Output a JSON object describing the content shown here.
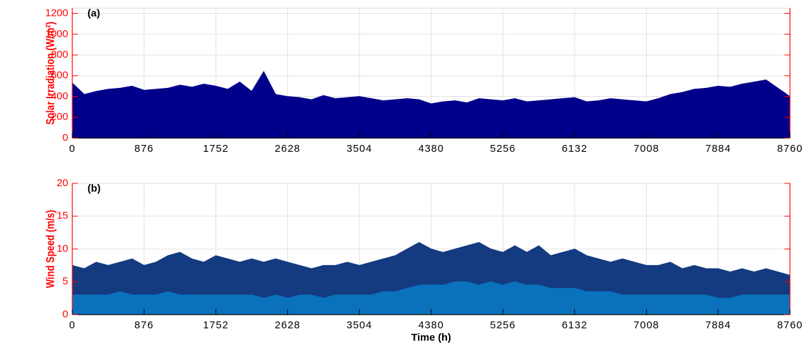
{
  "chart_data": [
    {
      "type": "area",
      "panel_label": "(a)",
      "ylabel": "Solar Irradiation (W/m²)",
      "x": [
        0,
        146,
        292,
        438,
        584,
        730,
        876,
        1022,
        1168,
        1314,
        1460,
        1606,
        1752,
        1898,
        2044,
        2190,
        2336,
        2482,
        2628,
        2774,
        2920,
        3066,
        3212,
        3358,
        3504,
        3650,
        3796,
        3942,
        4088,
        4234,
        4380,
        4526,
        4672,
        4818,
        4964,
        5110,
        5256,
        5402,
        5548,
        5694,
        5840,
        5986,
        6132,
        6278,
        6424,
        6570,
        6716,
        6862,
        7008,
        7154,
        7300,
        7446,
        7592,
        7738,
        7884,
        8030,
        8176,
        8322,
        8468,
        8614,
        8760
      ],
      "series": [
        {
          "color": "#00008b",
          "values": [
            530,
            420,
            450,
            470,
            480,
            500,
            460,
            470,
            480,
            510,
            490,
            520,
            500,
            470,
            540,
            450,
            640,
            420,
            400,
            390,
            370,
            410,
            380,
            390,
            400,
            380,
            360,
            370,
            380,
            370,
            330,
            350,
            360,
            340,
            380,
            370,
            360,
            380,
            350,
            360,
            370,
            380,
            390,
            350,
            360,
            380,
            370,
            360,
            350,
            380,
            420,
            440,
            470,
            480,
            500,
            490,
            520,
            540,
            560,
            480,
            400
          ]
        }
      ],
      "xlim": [
        0,
        8760
      ],
      "xticks": [
        0,
        876,
        1752,
        2628,
        3504,
        4380,
        5256,
        6132,
        7008,
        7884,
        8760
      ],
      "ylim": [
        0,
        1250
      ],
      "yticks": [
        0,
        200,
        400,
        600,
        800,
        1000,
        1200
      ],
      "grid": true,
      "axis_color": "#ff0000"
    },
    {
      "type": "area",
      "panel_label": "(b)",
      "ylabel": "Wind Speed (m/s)",
      "xlabel": "Time (h)",
      "x": [
        0,
        146,
        292,
        438,
        584,
        730,
        876,
        1022,
        1168,
        1314,
        1460,
        1606,
        1752,
        1898,
        2044,
        2190,
        2336,
        2482,
        2628,
        2774,
        2920,
        3066,
        3212,
        3358,
        3504,
        3650,
        3796,
        3942,
        4088,
        4234,
        4380,
        4526,
        4672,
        4818,
        4964,
        5110,
        5256,
        5402,
        5548,
        5694,
        5840,
        5986,
        6132,
        6278,
        6424,
        6570,
        6716,
        6862,
        7008,
        7154,
        7300,
        7446,
        7592,
        7738,
        7884,
        8030,
        8176,
        8322,
        8468,
        8614,
        8760
      ],
      "series": [
        {
          "color": "#143a80",
          "values": [
            7.5,
            7,
            8,
            7.5,
            8,
            8.5,
            7.5,
            8,
            9,
            9.5,
            8.5,
            8,
            9,
            8.5,
            8,
            8.5,
            8,
            8.5,
            8,
            7.5,
            7,
            7.5,
            7.5,
            8,
            7.5,
            8,
            8.5,
            9,
            10,
            11,
            10,
            9.5,
            10,
            10.5,
            11,
            10,
            9.5,
            10.5,
            9.5,
            10.5,
            9,
            9.5,
            10,
            9,
            8.5,
            8,
            8.5,
            8,
            7.5,
            7.5,
            8,
            7,
            7.5,
            7,
            7,
            6.5,
            7,
            6.5,
            7,
            6.5,
            6
          ]
        },
        {
          "color": "#0a72bd",
          "values": [
            3,
            3,
            3,
            3,
            3.5,
            3,
            3,
            3,
            3.5,
            3,
            3,
            3,
            3,
            3,
            3,
            3,
            2.5,
            3,
            2.5,
            3,
            3,
            2.5,
            3,
            3,
            3,
            3,
            3.5,
            3.5,
            4,
            4.5,
            4.5,
            4.5,
            5,
            5,
            4.5,
            5,
            4.5,
            5,
            4.5,
            4.5,
            4,
            4,
            4,
            3.5,
            3.5,
            3.5,
            3,
            3,
            3,
            3,
            3,
            3,
            3,
            3,
            2.5,
            2.5,
            3,
            3,
            3,
            3,
            3
          ]
        }
      ],
      "xlim": [
        0,
        8760
      ],
      "xticks": [
        0,
        876,
        1752,
        2628,
        3504,
        4380,
        5256,
        6132,
        7008,
        7884,
        8760
      ],
      "ylim": [
        0,
        20
      ],
      "yticks": [
        0,
        5,
        10,
        15,
        20
      ],
      "grid": true,
      "axis_color": "#ff0000"
    }
  ]
}
